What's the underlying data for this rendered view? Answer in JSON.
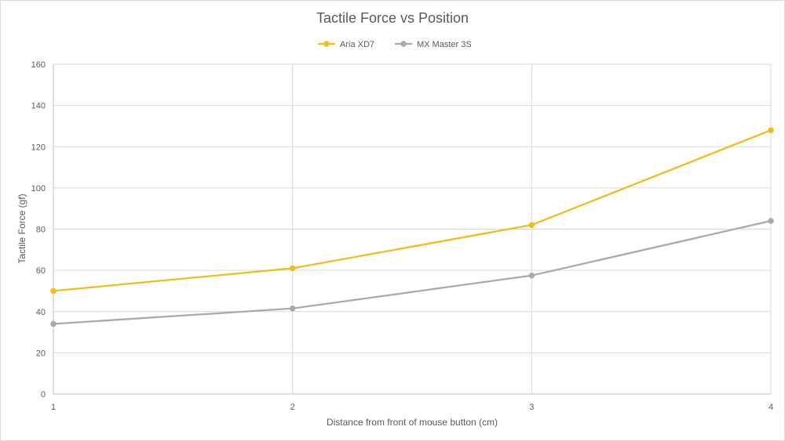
{
  "chart_data": {
    "type": "line",
    "title": "Tactile Force vs Position",
    "xlabel": "Distance from front of mouse button (cm)",
    "ylabel": "Tactile Force (gf)",
    "x": [
      1,
      2,
      3,
      4
    ],
    "x_tick_labels": [
      "1",
      "2",
      "3",
      "4"
    ],
    "ylim": [
      0,
      160
    ],
    "y_ticks": [
      0,
      20,
      40,
      60,
      80,
      100,
      120,
      140,
      160
    ],
    "grid": true,
    "legend_position": "top",
    "series": [
      {
        "name": "Aria XD7",
        "color": "#F1BC1A",
        "values": [
          50,
          61,
          82,
          128
        ]
      },
      {
        "name": "MX Master 3S",
        "color": "#A9A9A9",
        "values": [
          34,
          41.5,
          57.5,
          84
        ]
      }
    ]
  }
}
